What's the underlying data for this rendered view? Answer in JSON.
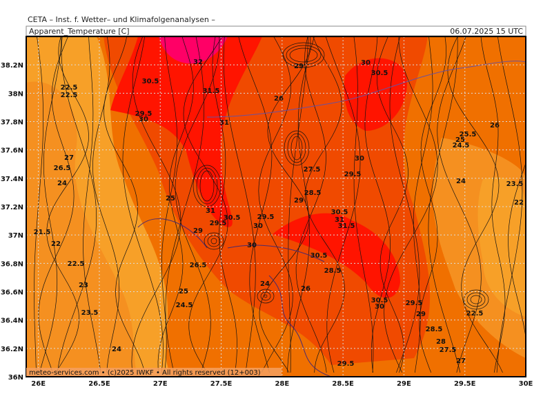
{
  "header": {
    "source": "CETA – Inst. f. Wetter– und Klimafolgenanalysen –",
    "title": "Apparent_Temperature [C]",
    "datetime": "06.07.2025 15 UTC"
  },
  "footer": "meteo-services.com • (c)2025 IWKF • All rights reserved (12+003)",
  "map": {
    "xlim": [
      25.9,
      30
    ],
    "ylim": [
      36,
      38.4
    ],
    "xticks": [
      {
        "value": 26,
        "label": "26E"
      },
      {
        "value": 26.5,
        "label": "26.5E"
      },
      {
        "value": 27,
        "label": "27E"
      },
      {
        "value": 27.5,
        "label": "27.5E"
      },
      {
        "value": 28,
        "label": "28E"
      },
      {
        "value": 28.5,
        "label": "28.5E"
      },
      {
        "value": 29,
        "label": "29E"
      },
      {
        "value": 29.5,
        "label": "29.5E"
      },
      {
        "value": 30,
        "label": "30E"
      }
    ],
    "yticks": [
      {
        "value": 36,
        "label": "36N"
      },
      {
        "value": 36.2,
        "label": "36.2N"
      },
      {
        "value": 36.4,
        "label": "36.4N"
      },
      {
        "value": 36.6,
        "label": "36.6N"
      },
      {
        "value": 36.8,
        "label": "36.8N"
      },
      {
        "value": 37,
        "label": "37N"
      },
      {
        "value": 37.2,
        "label": "37.2N"
      },
      {
        "value": 37.4,
        "label": "37.4N"
      },
      {
        "value": 37.6,
        "label": "37.6N"
      },
      {
        "value": 37.8,
        "label": "37.8N"
      },
      {
        "value": 38,
        "label": "38N"
      },
      {
        "value": 38.2,
        "label": "38.2N"
      }
    ],
    "grid": true,
    "contour_labels": [
      "32",
      "29",
      "30",
      "30.5",
      "30.5",
      "31.5",
      "26",
      "22.5",
      "22.5",
      "29.5",
      "30",
      "31",
      "25.5",
      "26",
      "25",
      "24.5",
      "27",
      "30",
      "27.5",
      "26.5",
      "24",
      "29.5",
      "24",
      "23.5",
      "28.5",
      "29",
      "25",
      "22",
      "31",
      "30.5",
      "29.5",
      "30",
      "29.5",
      "30.5",
      "31",
      "31.5",
      "21.5",
      "22",
      "29",
      "30",
      "22.5",
      "26.5",
      "30.5",
      "28.5",
      "23",
      "24",
      "26",
      "25",
      "24.5",
      "30.5",
      "30",
      "29.5",
      "29",
      "23.5",
      "22.5",
      "28.5",
      "28",
      "27.5",
      "24",
      "29.5",
      "27"
    ]
  }
}
